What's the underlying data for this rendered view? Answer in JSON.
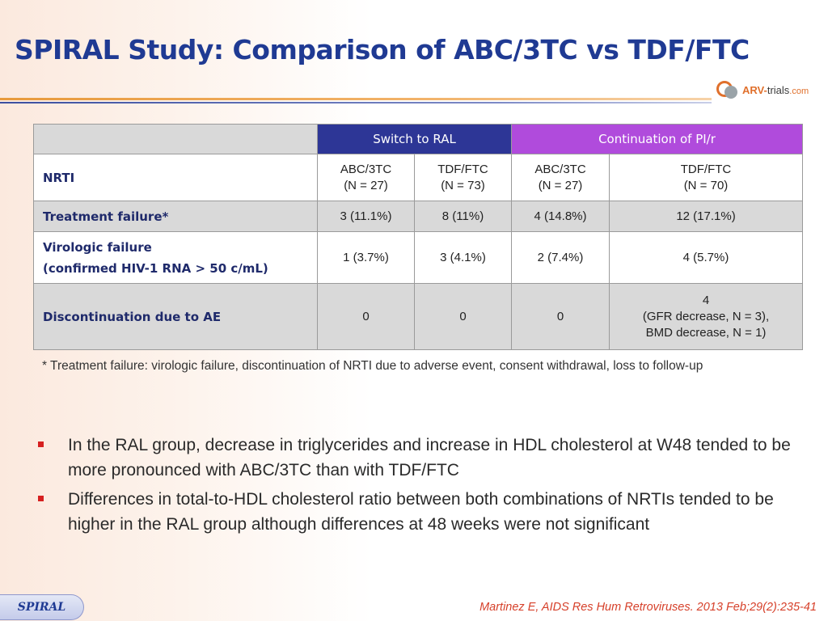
{
  "slide": {
    "title": "SPIRAL Study: Comparison of ABC/3TC vs TDF/FTC"
  },
  "logo": {
    "part1": "ARV-",
    "part2": "trials",
    "part3": ".com"
  },
  "table": {
    "group_headers": {
      "ral": "Switch to RAL",
      "pi": "Continuation of PI/r"
    },
    "nrti_row": {
      "label": "NRTI",
      "cols": [
        {
          "line1": "ABC/3TC",
          "line2": "(N = 27)"
        },
        {
          "line1": "TDF/FTC",
          "line2": "(N = 73)"
        },
        {
          "line1": "ABC/3TC",
          "line2": "(N = 27)"
        },
        {
          "line1": "TDF/FTC",
          "line2": "(N = 70)"
        }
      ]
    },
    "treatment_failure": {
      "label": "Treatment failure*",
      "values": [
        "3 (11.1%)",
        "8 (11%)",
        "4 (14.8%)",
        "12 (17.1%)"
      ]
    },
    "virologic_failure": {
      "label_line1": "Virologic failure",
      "label_line2": "(confirmed HIV-1 RNA > 50 c/mL)",
      "values": [
        "1 (3.7%)",
        "3 (4.1%)",
        "2 (7.4%)",
        "4 (5.7%)"
      ]
    },
    "discontinuation": {
      "label": "Discontinuation due to AE",
      "values": [
        "0",
        "0",
        "0"
      ],
      "last": {
        "line1": "4",
        "line2": "(GFR decrease, N = 3),",
        "line3": "BMD decrease, N = 1)"
      }
    }
  },
  "footnote": "* Treatment failure: virologic failure, discontinuation of NRTI due to adverse event, consent withdrawal, loss to follow-up",
  "bullets": [
    "In the RAL group, decrease in triglycerides and increase in HDL cholesterol at W48 tended to be more pronounced with ABC/3TC than with TDF/FTC",
    "Differences in total-to-HDL cholesterol ratio between both combinations of NRTIs tended to be higher in the RAL group although differences at 48 weeks were not significant"
  ],
  "study_tag": "SPIRAL",
  "citation": "Martinez E, AIDS Res Hum Retroviruses. 2013 Feb;29(2):235-41",
  "colors": {
    "title": "#1f3a93",
    "ral_header": "#2d3696",
    "pi_header": "#b04bdc",
    "bullet": "#d62020",
    "citation": "#d6402a"
  }
}
